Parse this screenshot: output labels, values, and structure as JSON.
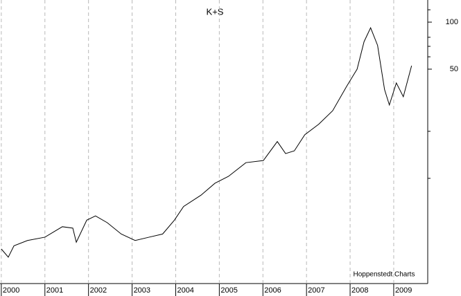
{
  "chart_data": {
    "type": "line",
    "title": "K+S",
    "source": "Hoppenstedt Charts",
    "x": [
      2000.0,
      2000.16,
      2000.29,
      2000.6,
      2001.0,
      2001.4,
      2001.64,
      2001.72,
      2001.96,
      2002.16,
      2002.43,
      2002.75,
      2003.07,
      2003.39,
      2003.7,
      2003.97,
      2004.18,
      2004.58,
      2004.9,
      2005.21,
      2005.61,
      2006.01,
      2006.33,
      2006.52,
      2006.72,
      2006.96,
      2007.28,
      2007.6,
      2007.92,
      2008.16,
      2008.32,
      2008.47,
      2008.63,
      2008.79,
      2008.9,
      2009.06,
      2009.22,
      2009.41
    ],
    "series": [
      {
        "color": "#000000",
        "values": [
          3.53,
          3.13,
          3.7,
          4.0,
          4.2,
          4.9,
          4.8,
          3.9,
          5.4,
          5.75,
          5.2,
          4.4,
          4.0,
          4.2,
          4.4,
          5.4,
          6.6,
          7.8,
          9.3,
          10.3,
          12.6,
          13.0,
          17.2,
          14.4,
          15.0,
          19.0,
          22.2,
          27.1,
          38.8,
          50,
          75,
          92,
          71,
          37,
          29.5,
          40.8,
          33.3,
          52.6
        ]
      }
    ],
    "xlim": [
      1999.97,
      2009.78
    ],
    "xticks": [
      2000,
      2001,
      2002,
      2003,
      2004,
      2005,
      2006,
      2007,
      2008,
      2009
    ],
    "ylim": [
      2.12,
      138.6
    ],
    "yticks": [
      100,
      50
    ],
    "minor_yticks": [
      120,
      80,
      70,
      60,
      20,
      10
    ],
    "log_scale": true,
    "grid": true
  }
}
